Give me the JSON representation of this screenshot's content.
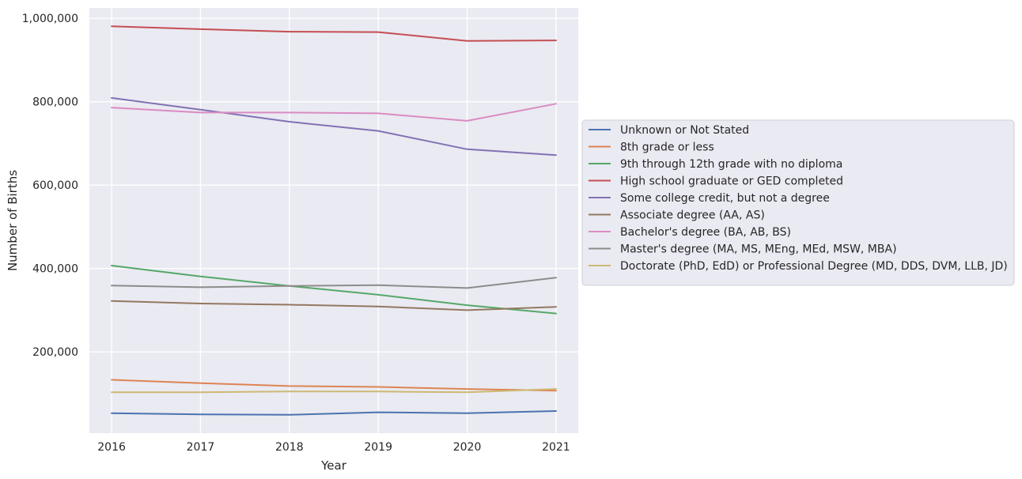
{
  "chart_data": {
    "type": "line",
    "xlabel": "Year",
    "ylabel": "Number of Births",
    "x": [
      2016,
      2017,
      2018,
      2019,
      2020,
      2021
    ],
    "x_tick_labels": [
      "2016",
      "2017",
      "2018",
      "2019",
      "2020",
      "2021"
    ],
    "y_ticks": [
      200000,
      400000,
      600000,
      800000,
      1000000
    ],
    "y_tick_labels": [
      "200,000",
      "400,000",
      "600,000",
      "800,000",
      "1,000,000"
    ],
    "xlim": [
      2015.75,
      2021.25
    ],
    "ylim": [
      5000,
      1025000
    ],
    "grid": true,
    "legend_position": "outside-right",
    "series": [
      {
        "name": "Unknown or Not Stated",
        "color": "#4c72b0",
        "values": [
          53000,
          50000,
          49000,
          55000,
          53000,
          58000
        ]
      },
      {
        "name": "8th grade or less",
        "color": "#dd8452",
        "values": [
          133000,
          125000,
          118000,
          116000,
          111000,
          107000
        ]
      },
      {
        "name": "9th through 12th grade with no diploma",
        "color": "#55a868",
        "values": [
          407000,
          381000,
          358000,
          337000,
          312000,
          292000
        ]
      },
      {
        "name": "High school graduate or GED completed",
        "color": "#c44e52",
        "values": [
          981000,
          974000,
          968000,
          967000,
          946000,
          947000
        ]
      },
      {
        "name": "Some college credit, but not a degree",
        "color": "#8172b3",
        "values": [
          809000,
          781000,
          752000,
          730000,
          686000,
          672000
        ]
      },
      {
        "name": "Associate degree (AA, AS)",
        "color": "#937860",
        "values": [
          322000,
          316000,
          313000,
          309000,
          300000,
          308000
        ]
      },
      {
        "name": "Bachelor's degree (BA, AB, BS)",
        "color": "#da8bc3",
        "values": [
          786000,
          774000,
          774000,
          772000,
          754000,
          795000
        ]
      },
      {
        "name": "Master's degree (MA, MS, MEng, MEd, MSW, MBA)",
        "color": "#8c8c8c",
        "values": [
          359000,
          355000,
          358000,
          360000,
          353000,
          378000
        ]
      },
      {
        "name": "Doctorate (PhD, EdD) or Professional Degree (MD, DDS, DVM, LLB, JD)",
        "color": "#ccb974",
        "values": [
          103000,
          103000,
          105000,
          105000,
          103000,
          111000
        ]
      }
    ]
  }
}
